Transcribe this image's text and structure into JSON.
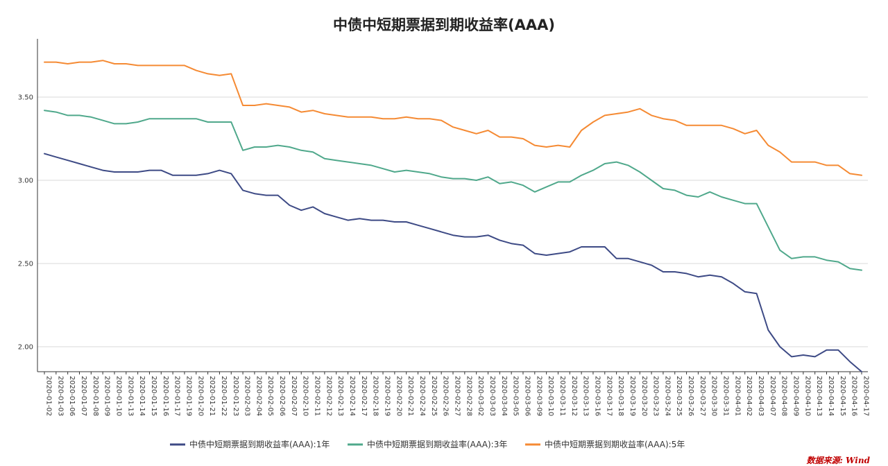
{
  "chart_data": {
    "type": "line",
    "title": "中债中短期票据到期收益率(AAA)",
    "source": "数据来源: Wind",
    "ylim": [
      1.85,
      3.85
    ],
    "yticks": [
      "2.00",
      "2.50",
      "3.00",
      "3.50"
    ],
    "grid": "horizontal",
    "legend_position": "bottom",
    "x": [
      "2020-01-02",
      "2020-01-03",
      "2020-01-06",
      "2020-01-07",
      "2020-01-08",
      "2020-01-09",
      "2020-01-10",
      "2020-01-13",
      "2020-01-14",
      "2020-01-15",
      "2020-01-16",
      "2020-01-17",
      "2020-01-19",
      "2020-01-20",
      "2020-01-21",
      "2020-01-22",
      "2020-01-23",
      "2020-02-03",
      "2020-02-04",
      "2020-02-05",
      "2020-02-06",
      "2020-02-07",
      "2020-02-10",
      "2020-02-11",
      "2020-02-12",
      "2020-02-13",
      "2020-02-14",
      "2020-02-17",
      "2020-02-18",
      "2020-02-19",
      "2020-02-20",
      "2020-02-21",
      "2020-02-24",
      "2020-02-25",
      "2020-02-26",
      "2020-02-27",
      "2020-02-28",
      "2020-03-02",
      "2020-03-03",
      "2020-03-04",
      "2020-03-05",
      "2020-03-06",
      "2020-03-09",
      "2020-03-10",
      "2020-03-11",
      "2020-03-12",
      "2020-03-13",
      "2020-03-16",
      "2020-03-17",
      "2020-03-18",
      "2020-03-19",
      "2020-03-20",
      "2020-03-23",
      "2020-03-24",
      "2020-03-25",
      "2020-03-26",
      "2020-03-27",
      "2020-03-30",
      "2020-03-31",
      "2020-04-01",
      "2020-04-02",
      "2020-04-03",
      "2020-04-07",
      "2020-04-08",
      "2020-04-09",
      "2020-04-10",
      "2020-04-13",
      "2020-04-14",
      "2020-04-15",
      "2020-04-16",
      "2020-04-17"
    ],
    "series": [
      {
        "name": "中债中短期票据到期收益率(AAA):1年",
        "color": "#3d4a85",
        "values": [
          3.16,
          3.14,
          3.12,
          3.1,
          3.08,
          3.06,
          3.05,
          3.05,
          3.05,
          3.06,
          3.06,
          3.03,
          3.03,
          3.03,
          3.04,
          3.06,
          3.04,
          2.94,
          2.92,
          2.91,
          2.91,
          2.85,
          2.82,
          2.84,
          2.8,
          2.78,
          2.76,
          2.77,
          2.76,
          2.76,
          2.75,
          2.75,
          2.73,
          2.71,
          2.69,
          2.67,
          2.66,
          2.66,
          2.67,
          2.64,
          2.62,
          2.61,
          2.56,
          2.55,
          2.56,
          2.57,
          2.6,
          2.6,
          2.6,
          2.53,
          2.53,
          2.51,
          2.49,
          2.45,
          2.45,
          2.44,
          2.42,
          2.43,
          2.42,
          2.38,
          2.33,
          2.32,
          2.1,
          2.0,
          1.94,
          1.95,
          1.94,
          1.98,
          1.98,
          1.91,
          1.85
        ]
      },
      {
        "name": "中债中短期票据到期收益率(AAA):3年",
        "color": "#4fa88b",
        "values": [
          3.42,
          3.41,
          3.39,
          3.39,
          3.38,
          3.36,
          3.34,
          3.34,
          3.35,
          3.37,
          3.37,
          3.37,
          3.37,
          3.37,
          3.35,
          3.35,
          3.35,
          3.18,
          3.2,
          3.2,
          3.21,
          3.2,
          3.18,
          3.17,
          3.13,
          3.12,
          3.11,
          3.1,
          3.09,
          3.07,
          3.05,
          3.06,
          3.05,
          3.04,
          3.02,
          3.01,
          3.01,
          3.0,
          3.02,
          2.98,
          2.99,
          2.97,
          2.93,
          2.96,
          2.99,
          2.99,
          3.03,
          3.06,
          3.1,
          3.11,
          3.09,
          3.05,
          3.0,
          2.95,
          2.94,
          2.91,
          2.9,
          2.93,
          2.9,
          2.88,
          2.86,
          2.86,
          2.72,
          2.58,
          2.53,
          2.54,
          2.54,
          2.52,
          2.51,
          2.47,
          2.46
        ]
      },
      {
        "name": "中债中短期票据到期收益率(AAA):5年",
        "color": "#f58a33",
        "values": [
          3.71,
          3.71,
          3.7,
          3.71,
          3.71,
          3.72,
          3.7,
          3.7,
          3.69,
          3.69,
          3.69,
          3.69,
          3.69,
          3.66,
          3.64,
          3.63,
          3.64,
          3.45,
          3.45,
          3.46,
          3.45,
          3.44,
          3.41,
          3.42,
          3.4,
          3.39,
          3.38,
          3.38,
          3.38,
          3.37,
          3.37,
          3.38,
          3.37,
          3.37,
          3.36,
          3.32,
          3.3,
          3.28,
          3.3,
          3.26,
          3.26,
          3.25,
          3.21,
          3.2,
          3.21,
          3.2,
          3.3,
          3.35,
          3.39,
          3.4,
          3.41,
          3.43,
          3.39,
          3.37,
          3.36,
          3.33,
          3.33,
          3.33,
          3.33,
          3.31,
          3.28,
          3.3,
          3.21,
          3.17,
          3.11,
          3.11,
          3.11,
          3.09,
          3.09,
          3.04,
          3.03
        ]
      }
    ]
  }
}
